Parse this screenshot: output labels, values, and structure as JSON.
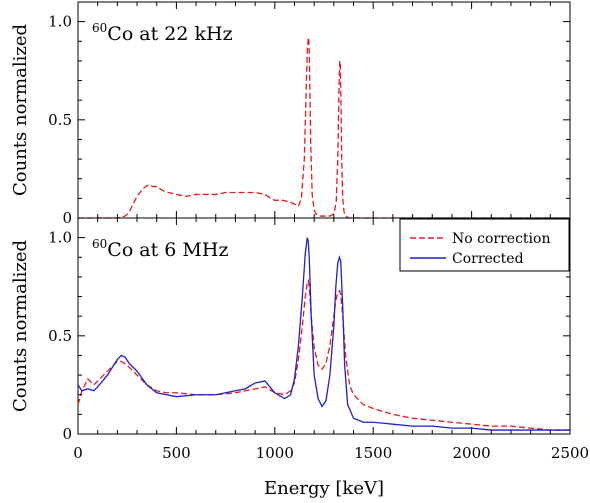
{
  "chart_data": [
    {
      "type": "line",
      "title": "Co at 22 kHz",
      "title_superscript": "60",
      "xlabel": "Energy [keV]",
      "ylabel": "Counts normalized",
      "xlim": [
        0,
        2500
      ],
      "ylim": [
        0,
        1.1
      ],
      "x_ticks": [
        "0",
        "500",
        "1000",
        "1500",
        "2000",
        "2500"
      ],
      "y_ticks": [
        "0",
        "0.5",
        "1.0"
      ],
      "grid": false,
      "legend": "none",
      "series": [
        {
          "color": "#e41a1c",
          "dash": "dashed",
          "x": [
            0,
            100,
            200,
            240,
            260,
            280,
            300,
            330,
            360,
            380,
            400,
            430,
            460,
            500,
            550,
            600,
            650,
            700,
            750,
            800,
            850,
            900,
            950,
            980,
            1000,
            1040,
            1080,
            1100,
            1120,
            1135,
            1150,
            1158,
            1165,
            1170,
            1173,
            1176,
            1182,
            1190,
            1200,
            1210,
            1225,
            1240,
            1260,
            1280,
            1300,
            1312,
            1320,
            1326,
            1330,
            1333,
            1336,
            1340,
            1345,
            1352,
            1360,
            1375,
            1400,
            1500,
            1700,
            2000,
            2500
          ],
          "y": [
            0,
            0,
            0,
            0.01,
            0.03,
            0.07,
            0.11,
            0.15,
            0.17,
            0.16,
            0.16,
            0.14,
            0.13,
            0.12,
            0.11,
            0.12,
            0.12,
            0.12,
            0.13,
            0.13,
            0.13,
            0.13,
            0.12,
            0.1,
            0.09,
            0.09,
            0.08,
            0.07,
            0.06,
            0.1,
            0.3,
            0.6,
            0.85,
            0.92,
            0.9,
            0.8,
            0.4,
            0.12,
            0.04,
            0.02,
            0.01,
            0.01,
            0.01,
            0.01,
            0.02,
            0.08,
            0.3,
            0.65,
            0.8,
            0.78,
            0.6,
            0.3,
            0.1,
            0.03,
            0.01,
            0,
            0,
            0,
            0,
            0,
            0
          ]
        }
      ]
    },
    {
      "type": "line",
      "title": "Co at 6 MHz",
      "title_superscript": "60",
      "xlabel": "Energy [keV]",
      "ylabel": "Counts normalized",
      "xlim": [
        0,
        2500
      ],
      "ylim": [
        0,
        1.1
      ],
      "x_ticks": [
        "0",
        "500",
        "1000",
        "1500",
        "2000",
        "2500"
      ],
      "y_ticks": [
        "0",
        "0.5",
        "1.0"
      ],
      "grid": false,
      "legend": "top-right",
      "series": [
        {
          "name": "No correction",
          "color": "#e41a1c",
          "dash": "dashed",
          "x": [
            0,
            20,
            50,
            80,
            100,
            150,
            200,
            220,
            250,
            300,
            350,
            400,
            450,
            500,
            600,
            700,
            800,
            850,
            900,
            950,
            1000,
            1050,
            1080,
            1100,
            1120,
            1140,
            1155,
            1165,
            1170,
            1175,
            1185,
            1200,
            1220,
            1240,
            1260,
            1280,
            1300,
            1310,
            1320,
            1330,
            1335,
            1345,
            1360,
            1380,
            1400,
            1450,
            1500,
            1600,
            1700,
            1800,
            1900,
            2000,
            2100,
            2200,
            2300,
            2400,
            2500
          ],
          "y": [
            0.15,
            0.22,
            0.28,
            0.25,
            0.27,
            0.32,
            0.37,
            0.37,
            0.35,
            0.3,
            0.25,
            0.22,
            0.21,
            0.21,
            0.2,
            0.2,
            0.21,
            0.22,
            0.23,
            0.24,
            0.21,
            0.2,
            0.22,
            0.26,
            0.38,
            0.55,
            0.7,
            0.77,
            0.78,
            0.75,
            0.6,
            0.44,
            0.35,
            0.33,
            0.36,
            0.45,
            0.6,
            0.68,
            0.72,
            0.73,
            0.71,
            0.6,
            0.4,
            0.25,
            0.2,
            0.15,
            0.13,
            0.1,
            0.08,
            0.07,
            0.06,
            0.05,
            0.04,
            0.04,
            0.03,
            0.02,
            0.02
          ]
        },
        {
          "name": "Corrected",
          "color": "#1f1fcc",
          "dash": "solid",
          "x": [
            0,
            20,
            50,
            80,
            100,
            150,
            200,
            220,
            240,
            260,
            300,
            350,
            400,
            450,
            500,
            600,
            700,
            800,
            850,
            900,
            950,
            1000,
            1050,
            1080,
            1100,
            1120,
            1140,
            1155,
            1165,
            1170,
            1175,
            1185,
            1200,
            1220,
            1240,
            1260,
            1280,
            1300,
            1310,
            1320,
            1328,
            1335,
            1345,
            1355,
            1370,
            1400,
            1450,
            1500,
            1600,
            1700,
            1800,
            1900,
            2000,
            2100,
            2200,
            2300,
            2400,
            2500
          ],
          "y": [
            0.25,
            0.22,
            0.23,
            0.22,
            0.24,
            0.3,
            0.38,
            0.4,
            0.39,
            0.36,
            0.32,
            0.25,
            0.21,
            0.2,
            0.19,
            0.2,
            0.2,
            0.22,
            0.23,
            0.26,
            0.27,
            0.21,
            0.18,
            0.2,
            0.28,
            0.45,
            0.7,
            0.92,
            1.0,
            0.98,
            0.9,
            0.6,
            0.3,
            0.18,
            0.14,
            0.17,
            0.3,
            0.55,
            0.75,
            0.87,
            0.9,
            0.88,
            0.65,
            0.35,
            0.15,
            0.08,
            0.06,
            0.06,
            0.05,
            0.04,
            0.04,
            0.03,
            0.03,
            0.02,
            0.02,
            0.02,
            0.02,
            0.02
          ]
        }
      ]
    }
  ]
}
